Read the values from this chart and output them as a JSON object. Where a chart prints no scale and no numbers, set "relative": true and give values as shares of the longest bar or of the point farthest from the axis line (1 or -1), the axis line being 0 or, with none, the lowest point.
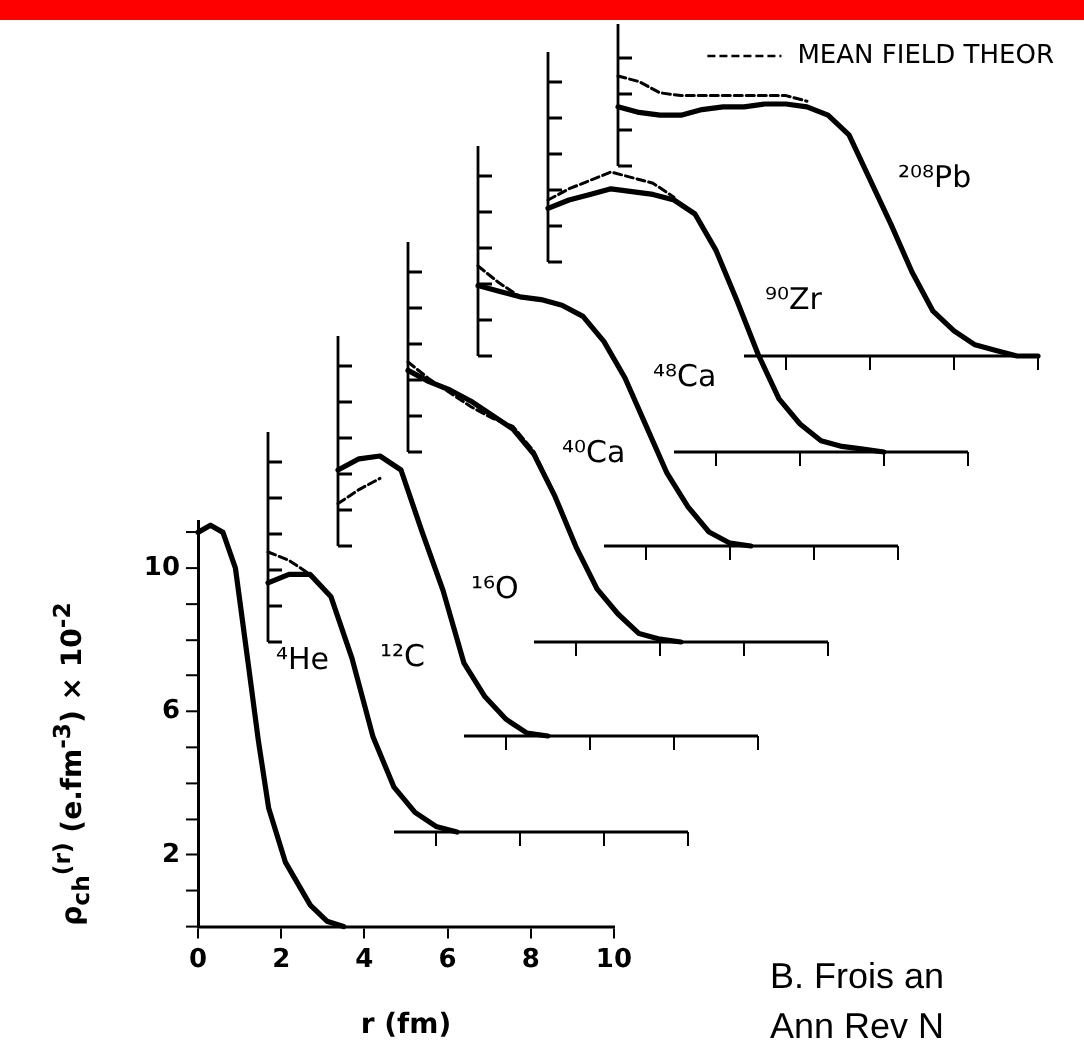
{
  "chart_data": [
    {
      "type": "line",
      "xlabel": "r (fm)",
      "ylabel": "ρ$_{ch}$$^{(r)}$ (e.fm$^{-3}$) × 10$^{-2}$",
      "annotations": [
        "B. Frois an",
        "Ann Rev N"
      ],
      "xlim": [
        0,
        10
      ],
      "ylim": [
        0,
        11.3
      ],
      "xticks": [
        0,
        2,
        4,
        6,
        8,
        10
      ],
      "yticks": [
        {
          "value": 0,
          "label": null
        },
        {
          "value": 1,
          "label": null
        },
        2,
        {
          "value": 3,
          "label": null
        },
        {
          "value": 4,
          "label": null
        },
        {
          "value": 5,
          "label": null
        },
        6,
        {
          "value": 7,
          "label": null
        },
        {
          "value": 8,
          "label": null
        },
        {
          "value": 9,
          "label": null
        },
        10,
        {
          "value": 11,
          "label": null
        }
      ],
      "series": [
        {
          "name": "⁴He",
          "color": "#000000",
          "x": [
            0,
            0.3,
            0.6,
            0.9,
            1.2,
            1.45,
            1.7,
            2.1,
            2.7,
            3.1,
            3.5
          ],
          "values": [
            11.0,
            11.2,
            11.0,
            10.0,
            7.4,
            5.2,
            3.3,
            1.8,
            0.6,
            0.15,
            0
          ]
        }
      ]
    },
    {
      "type": "line",
      "relative": true,
      "categories": [
        null,
        null,
        null,
        null,
        null,
        null,
        null,
        null,
        null,
        null,
        null,
        null,
        null,
        null,
        null,
        null,
        null,
        null,
        null,
        null,
        null
      ],
      "series": [
        {
          "name": "¹²C",
          "color": "#000000",
          "values": [
            0.89,
            0.92,
            0.92,
            0.84,
            0.62,
            0.34,
            0.16,
            0.07,
            0.02,
            0,
            null,
            null,
            null,
            null,
            null,
            null,
            null,
            null,
            null,
            null,
            null
          ]
        },
        {
          "color": "#000000",
          "line_style": "dashed",
          "values": [
            1,
            0.97,
            0.92,
            null,
            null,
            null,
            null,
            null,
            null,
            null,
            null,
            null,
            null,
            null,
            null,
            null,
            null,
            null,
            null,
            null,
            null
          ]
        }
      ]
    },
    {
      "type": "line",
      "relative": true,
      "categories": [
        null,
        null,
        null,
        null,
        null,
        null,
        null,
        null,
        null,
        null,
        null,
        null,
        null,
        null,
        null,
        null,
        null,
        null,
        null,
        null,
        null
      ],
      "series": [
        {
          "name": "¹⁶O",
          "color": "#000000",
          "values": [
            0.95,
            0.99,
            1,
            0.95,
            0.73,
            0.52,
            0.26,
            0.14,
            0.06,
            0.01,
            0,
            null,
            null,
            null,
            null,
            null,
            null,
            null,
            null,
            null,
            null
          ]
        },
        {
          "color": "#000000",
          "line_style": "dashed",
          "values": [
            0.83,
            0.88,
            0.92,
            null,
            null,
            null,
            null,
            null,
            null,
            null,
            null,
            null,
            null,
            null,
            null,
            null,
            null,
            null,
            null,
            null,
            null
          ]
        }
      ]
    },
    {
      "type": "line",
      "relative": true,
      "categories": [
        null,
        null,
        null,
        null,
        null,
        null,
        null,
        null,
        null,
        null,
        null,
        null,
        null,
        null,
        null,
        null,
        null,
        null,
        null,
        null,
        null
      ],
      "series": [
        {
          "name": "⁴⁰Ca",
          "color": "#000000",
          "values": [
            0.97,
            0.93,
            0.9,
            0.86,
            0.81,
            0.76,
            0.67,
            0.52,
            0.34,
            0.19,
            0.1,
            0.03,
            0.01,
            0,
            null,
            null,
            null,
            null,
            null,
            null,
            null
          ]
        },
        {
          "color": "#000000",
          "line_style": "dashed",
          "values": [
            1,
            0.94,
            0.89,
            0.84,
            0.8,
            0.77,
            0.68,
            0.52,
            null,
            null,
            null,
            null,
            null,
            null,
            null,
            null,
            null,
            null,
            null,
            null,
            null
          ]
        }
      ]
    },
    {
      "type": "line",
      "relative": true,
      "categories": [
        null,
        null,
        null,
        null,
        null,
        null,
        null,
        null,
        null,
        null,
        null,
        null,
        null,
        null,
        null,
        null,
        null,
        null,
        null,
        null,
        null
      ],
      "series": [
        {
          "name": "⁴⁸Ca",
          "color": "#000000",
          "values": [
            0.93,
            0.91,
            0.89,
            0.88,
            0.86,
            0.82,
            0.73,
            0.6,
            0.43,
            0.26,
            0.14,
            0.05,
            0.01,
            0,
            null,
            null,
            null,
            null,
            null,
            null,
            null
          ]
        },
        {
          "color": "#000000",
          "line_style": "dashed",
          "values": [
            1,
            0.94,
            0.89,
            null,
            null,
            null,
            null,
            null,
            null,
            null,
            null,
            null,
            null,
            null,
            null,
            null,
            null,
            null,
            null,
            null,
            null
          ]
        }
      ]
    },
    {
      "type": "line",
      "relative": true,
      "categories": [
        null,
        null,
        null,
        null,
        null,
        null,
        null,
        null,
        null,
        null,
        null,
        null,
        null,
        null,
        null,
        null,
        null,
        null,
        null,
        null,
        null
      ],
      "series": [
        {
          "name": "⁹⁰Zr",
          "color": "#000000",
          "values": [
            0.87,
            0.9,
            0.92,
            0.94,
            0.93,
            0.92,
            0.9,
            0.85,
            0.72,
            0.54,
            0.35,
            0.19,
            0.1,
            0.04,
            0.02,
            0.01,
            0,
            null,
            null,
            null,
            null
          ]
        },
        {
          "color": "#000000",
          "line_style": "dashed",
          "values": [
            0.9,
            0.94,
            0.97,
            1,
            0.98,
            0.96,
            0.91,
            null,
            null,
            null,
            null,
            null,
            null,
            null,
            null,
            null,
            null,
            null,
            null,
            null,
            null
          ]
        }
      ]
    },
    {
      "type": "line",
      "relative": true,
      "legend": "top right",
      "categories": [
        null,
        null,
        null,
        null,
        null,
        null,
        null,
        null,
        null,
        null,
        null,
        null,
        null,
        null,
        null,
        null,
        null,
        null,
        null,
        null,
        null
      ],
      "series": [
        {
          "name": "²⁰⁸Pb",
          "color": "#000000",
          "values": [
            0.89,
            0.87,
            0.86,
            0.86,
            0.88,
            0.89,
            0.89,
            0.9,
            0.9,
            0.89,
            0.86,
            0.79,
            0.63,
            0.47,
            0.3,
            0.16,
            0.09,
            0.04,
            0.02,
            0,
            0
          ]
        },
        {
          "name": "MEAN FIELD THEOR",
          "color": "#000000",
          "line_style": "dashed",
          "values": [
            1,
            0.98,
            0.94,
            0.93,
            0.93,
            0.93,
            0.93,
            0.93,
            0.93,
            0.91,
            null,
            null,
            null,
            null,
            null,
            null,
            null,
            null,
            null,
            null,
            null
          ]
        }
      ]
    }
  ]
}
